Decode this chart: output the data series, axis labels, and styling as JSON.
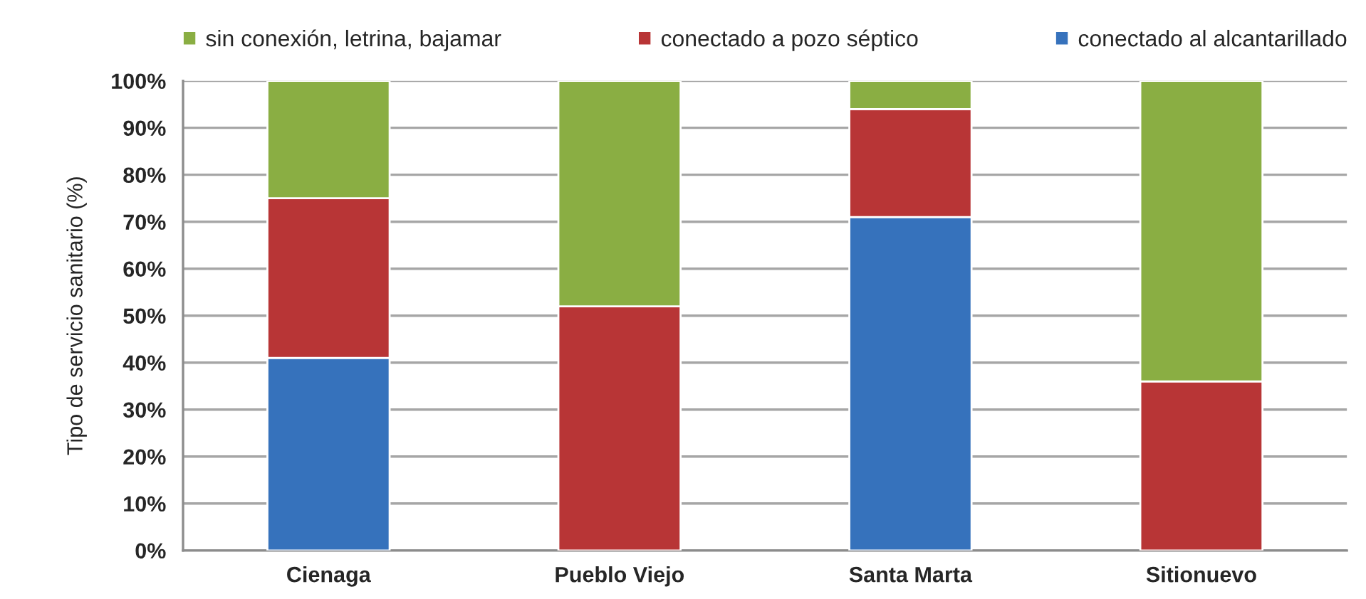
{
  "chart_data": {
    "type": "bar",
    "stacked": true,
    "categories": [
      "Cienaga",
      "Pueblo Viejo",
      "Santa Marta",
      "Sitionuevo"
    ],
    "series": [
      {
        "name": "conectado al alcantarillado",
        "color": "#3672bc",
        "values": [
          41,
          0,
          71,
          0
        ]
      },
      {
        "name": "conectado a pozo séptico",
        "color": "#b83536",
        "values": [
          34,
          52,
          23,
          36
        ]
      },
      {
        "name": "sin conexión, letrina, bajamar",
        "color": "#8aae43",
        "values": [
          25,
          48,
          6,
          64
        ]
      }
    ],
    "ylabel": "Tipo de servicio sanitario (%)",
    "ylim": [
      0,
      100
    ],
    "yticks": [
      {
        "value": 0,
        "label": "0%"
      },
      {
        "value": 10,
        "label": "10%"
      },
      {
        "value": 20,
        "label": "20%"
      },
      {
        "value": 30,
        "label": "30%"
      },
      {
        "value": 40,
        "label": "40%"
      },
      {
        "value": 50,
        "label": "50%"
      },
      {
        "value": 60,
        "label": "60%"
      },
      {
        "value": 70,
        "label": "70%"
      },
      {
        "value": 80,
        "label": "80%"
      },
      {
        "value": 90,
        "label": "90%"
      },
      {
        "value": 100,
        "label": "100%"
      }
    ],
    "grid": "y",
    "legend": "top"
  }
}
